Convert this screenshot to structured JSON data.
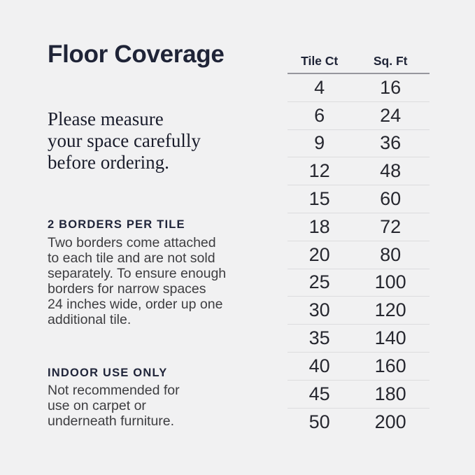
{
  "left_panel": {
    "title": "Floor Coverage",
    "notice": "Please measure\nyour space carefully\nbefore ordering.",
    "sections": [
      {
        "heading": "2 BORDERS PER TILE",
        "body": "Two borders come attached\nto each tile and are not sold\nseparately. To ensure enough\nborders for narrow spaces\n24 inches wide, order up one\nadditional tile."
      },
      {
        "heading": "INDOOR USE ONLY",
        "body": "Not recommended for\nuse on carpet or\nunderneath furniture."
      }
    ]
  },
  "table": {
    "columns": [
      "Tile Ct",
      "Sq. Ft"
    ],
    "rows": [
      [
        4,
        16
      ],
      [
        6,
        24
      ],
      [
        9,
        36
      ],
      [
        12,
        48
      ],
      [
        15,
        60
      ],
      [
        18,
        72
      ],
      [
        20,
        80
      ],
      [
        25,
        100
      ],
      [
        30,
        120
      ],
      [
        35,
        140
      ],
      [
        40,
        160
      ],
      [
        45,
        180
      ],
      [
        50,
        200
      ]
    ]
  },
  "colors": {
    "background": "#f1f1f2",
    "heading_navy": "#1f2437",
    "body_text": "#3d3d40",
    "table_number_text": "#26272f",
    "table_header_rule": "#97979d",
    "table_row_rule": "#dcdcde"
  }
}
